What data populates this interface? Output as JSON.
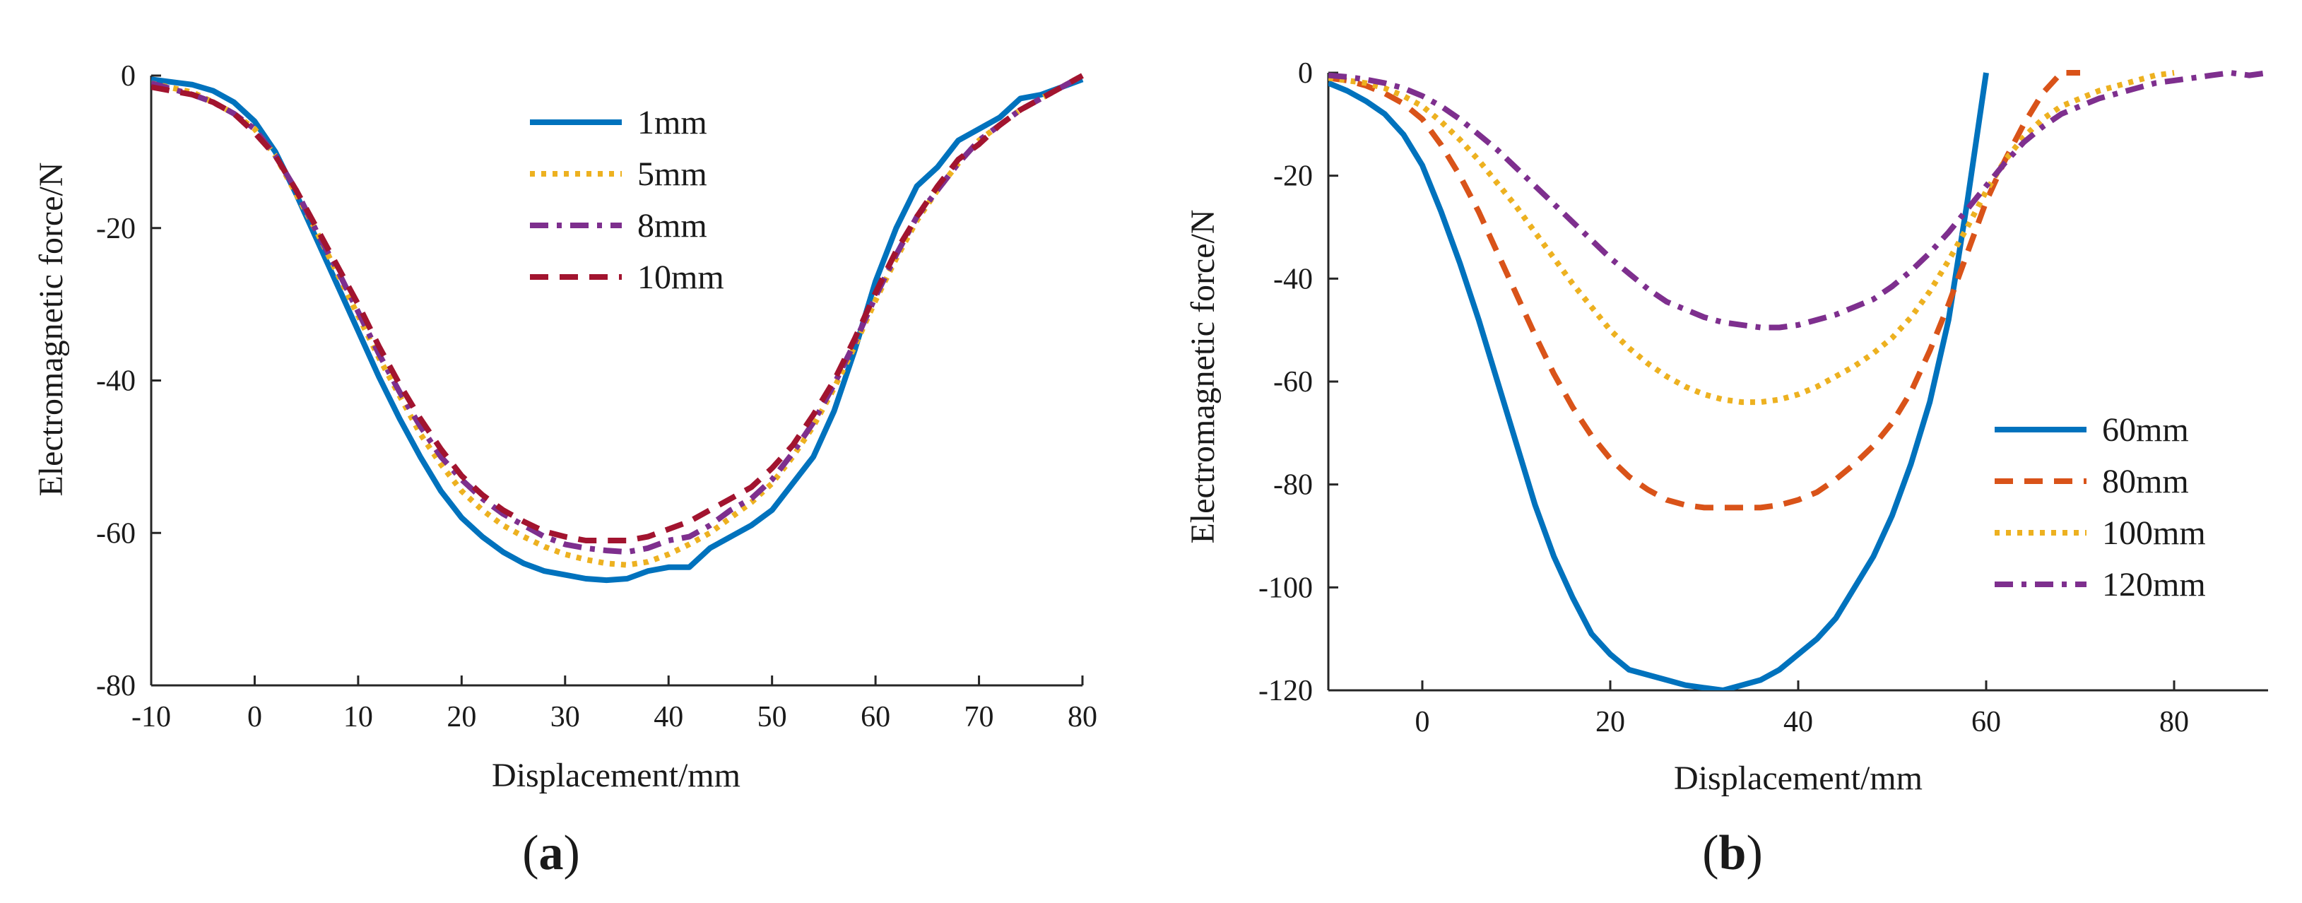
{
  "colors": {
    "blue": "#0072BD",
    "orange": "#D95319",
    "yellow": "#EDB120",
    "purple": "#7E2F8E",
    "darkred": "#A2142F",
    "axis": "#262626"
  },
  "chart_data": [
    {
      "type": "line",
      "panel_label": "(a)",
      "panel_letter": "a",
      "xlabel": "Displacement/mm",
      "ylabel": "Electromagnetic force/N",
      "xlim": [
        -10,
        80
      ],
      "ylim": [
        -80,
        0
      ],
      "xticks": [
        -10,
        0,
        10,
        20,
        30,
        40,
        50,
        60,
        70,
        80
      ],
      "yticks": [
        0,
        -20,
        -40,
        -60,
        -80
      ],
      "legend_position": "top-center",
      "series": [
        {
          "name": "1mm",
          "color": "#0072BD",
          "style": "solid",
          "x": [
            -10,
            -6,
            -4,
            -2,
            0,
            2,
            4,
            6,
            8,
            10,
            12,
            14,
            16,
            18,
            20,
            22,
            24,
            26,
            28,
            30,
            32,
            34,
            36,
            38,
            40,
            42,
            44,
            46,
            48,
            50,
            52,
            54,
            56,
            58,
            60,
            62,
            64,
            66,
            68,
            70,
            72,
            74,
            76,
            78,
            80
          ],
          "y": [
            -0.5,
            -1.2,
            -2.0,
            -3.5,
            -6.0,
            -10.0,
            -15.5,
            -21.5,
            -27.5,
            -33.5,
            -39.5,
            -45.0,
            -50.0,
            -54.5,
            -58.0,
            -60.5,
            -62.5,
            -64.0,
            -65.0,
            -65.5,
            -66.0,
            -66.2,
            -66.0,
            -65.0,
            -64.5,
            -64.5,
            -62.0,
            -60.5,
            -59.0,
            -57.0,
            -53.5,
            -50.0,
            -44.0,
            -36.0,
            -27.0,
            -20.0,
            -14.5,
            -12.0,
            -8.5,
            -7.0,
            -5.5,
            -3.0,
            -2.5,
            -1.5,
            -0.5
          ]
        },
        {
          "name": "5mm",
          "color": "#EDB120",
          "style": "dotted",
          "x": [
            -10,
            -6,
            -4,
            -2,
            0,
            2,
            4,
            6,
            8,
            10,
            12,
            14,
            16,
            18,
            20,
            22,
            24,
            26,
            28,
            30,
            32,
            34,
            36,
            38,
            40,
            42,
            44,
            46,
            48,
            50,
            52,
            54,
            56,
            58,
            60,
            62,
            64,
            66,
            68,
            70,
            72,
            74,
            76,
            78,
            80
          ],
          "y": [
            -1.0,
            -2.2,
            -3.5,
            -5.0,
            -7.0,
            -10.5,
            -15.5,
            -20.5,
            -26.0,
            -31.5,
            -37.0,
            -42.0,
            -47.0,
            -51.0,
            -54.5,
            -57.0,
            -59.0,
            -60.5,
            -61.8,
            -62.8,
            -63.5,
            -64.0,
            -64.2,
            -63.8,
            -62.8,
            -61.5,
            -60.0,
            -58.0,
            -56.0,
            -53.5,
            -50.0,
            -46.0,
            -41.0,
            -35.5,
            -29.5,
            -24.0,
            -19.0,
            -15.0,
            -11.5,
            -8.5,
            -6.5,
            -4.5,
            -3.0,
            -1.5,
            0.0
          ]
        },
        {
          "name": "8mm",
          "color": "#7E2F8E",
          "style": "dashdot",
          "x": [
            -10,
            -6,
            -4,
            -2,
            0,
            2,
            4,
            6,
            8,
            10,
            12,
            14,
            16,
            18,
            20,
            22,
            24,
            26,
            28,
            30,
            32,
            34,
            36,
            38,
            40,
            42,
            44,
            46,
            48,
            50,
            52,
            54,
            56,
            58,
            60,
            62,
            64,
            66,
            68,
            70,
            72,
            74,
            76,
            78,
            80
          ],
          "y": [
            -1.0,
            -2.5,
            -3.5,
            -5.0,
            -7.0,
            -10.5,
            -15.0,
            -20.5,
            -25.5,
            -31.0,
            -36.5,
            -41.5,
            -46.0,
            -50.0,
            -53.0,
            -55.5,
            -57.5,
            -59.0,
            -60.5,
            -61.5,
            -62.0,
            -62.3,
            -62.5,
            -62.0,
            -61.0,
            -60.5,
            -59.0,
            -57.0,
            -55.5,
            -53.0,
            -49.5,
            -45.5,
            -40.5,
            -35.0,
            -29.0,
            -23.5,
            -18.5,
            -15.0,
            -11.5,
            -8.5,
            -6.5,
            -4.5,
            -3.0,
            -1.5,
            0.0
          ]
        },
        {
          "name": "10mm",
          "color": "#A2142F",
          "style": "dashed",
          "x": [
            -10,
            -6,
            -4,
            -2,
            0,
            2,
            4,
            6,
            8,
            10,
            12,
            14,
            16,
            18,
            20,
            22,
            24,
            26,
            28,
            30,
            32,
            34,
            36,
            38,
            40,
            42,
            44,
            46,
            48,
            50,
            52,
            54,
            56,
            58,
            60,
            62,
            64,
            66,
            68,
            70,
            72,
            74,
            76,
            78,
            80
          ],
          "y": [
            -1.5,
            -2.5,
            -3.5,
            -5.0,
            -7.5,
            -10.5,
            -15.0,
            -20.0,
            -25.0,
            -30.0,
            -35.5,
            -40.5,
            -45.0,
            -49.0,
            -52.5,
            -55.0,
            -57.0,
            -58.5,
            -59.8,
            -60.5,
            -61.0,
            -61.0,
            -61.0,
            -60.5,
            -59.5,
            -58.5,
            -57.0,
            -55.5,
            -54.0,
            -51.5,
            -48.5,
            -44.5,
            -40.0,
            -34.5,
            -28.5,
            -23.0,
            -18.5,
            -14.5,
            -11.0,
            -9.0,
            -6.5,
            -4.5,
            -3.0,
            -1.5,
            0.0
          ]
        }
      ]
    },
    {
      "type": "line",
      "panel_label": "(b)",
      "panel_letter": "b",
      "xlabel": "Displacement/mm",
      "ylabel": "Electromagnetic force/N",
      "xlim": [
        -10,
        90
      ],
      "ylim": [
        -120,
        0
      ],
      "xticks": [
        0,
        20,
        40,
        60,
        80
      ],
      "yticks": [
        0,
        -20,
        -40,
        -60,
        -80,
        -100,
        -120
      ],
      "legend_position": "bottom-right",
      "series": [
        {
          "name": "60mm",
          "color": "#0072BD",
          "style": "solid",
          "x": [
            -10,
            -8,
            -6,
            -4,
            -2,
            0,
            2,
            4,
            6,
            8,
            10,
            12,
            14,
            16,
            18,
            20,
            22,
            24,
            26,
            28,
            30,
            32,
            34,
            36,
            38,
            40,
            42,
            44,
            46,
            48,
            50,
            52,
            54,
            56,
            58,
            60
          ],
          "y": [
            -2,
            -3.5,
            -5.5,
            -8,
            -12,
            -18,
            -27,
            -37,
            -48,
            -60,
            -72,
            -84,
            -94,
            -102,
            -109,
            -113,
            -116,
            -117,
            -118,
            -119,
            -119.5,
            -120,
            -119,
            -118,
            -116,
            -113,
            -110,
            -106,
            -100,
            -94,
            -86,
            -76,
            -64,
            -48,
            -25,
            0
          ]
        },
        {
          "name": "80mm",
          "color": "#D95319",
          "style": "dashed",
          "x": [
            -10,
            -8,
            -6,
            -4,
            -2,
            0,
            2,
            4,
            6,
            8,
            10,
            12,
            14,
            16,
            18,
            20,
            22,
            24,
            26,
            28,
            30,
            32,
            34,
            36,
            38,
            40,
            42,
            44,
            46,
            48,
            50,
            52,
            54,
            56,
            58,
            60,
            62,
            64,
            66,
            68,
            70
          ],
          "y": [
            -1,
            -1.5,
            -2.5,
            -4,
            -6,
            -9,
            -14,
            -20,
            -27,
            -35,
            -43,
            -51,
            -58.5,
            -65,
            -70.5,
            -75,
            -78.5,
            -81,
            -83,
            -84,
            -84.5,
            -84.5,
            -84.5,
            -84.5,
            -84,
            -83,
            -81.5,
            -79,
            -76,
            -72.5,
            -68,
            -62,
            -54,
            -45,
            -35,
            -25,
            -17,
            -10,
            -4,
            0,
            0
          ]
        },
        {
          "name": "100mm",
          "color": "#EDB120",
          "style": "dotted",
          "x": [
            -10,
            -8,
            -6,
            -4,
            -2,
            0,
            2,
            4,
            6,
            8,
            10,
            12,
            14,
            16,
            18,
            20,
            22,
            24,
            26,
            28,
            30,
            32,
            34,
            36,
            38,
            40,
            42,
            44,
            46,
            48,
            50,
            52,
            54,
            56,
            58,
            60,
            62,
            64,
            66,
            68,
            70,
            72,
            74,
            76,
            78,
            80
          ],
          "y": [
            -1,
            -1.5,
            -2,
            -3,
            -4.5,
            -6.5,
            -9.5,
            -13,
            -17,
            -21.5,
            -26,
            -31,
            -36,
            -41,
            -45.5,
            -50,
            -53.5,
            -56.5,
            -59,
            -61,
            -62.5,
            -63.5,
            -64,
            -64,
            -63.5,
            -62.5,
            -61,
            -59,
            -57,
            -54.5,
            -51.5,
            -47.5,
            -42.5,
            -36.5,
            -30,
            -23,
            -17,
            -12.5,
            -9,
            -6.5,
            -5,
            -3.5,
            -2.5,
            -1.5,
            -0.5,
            0
          ]
        },
        {
          "name": "120mm",
          "color": "#7E2F8E",
          "style": "dashdot",
          "x": [
            -10,
            -8,
            -6,
            -4,
            -2,
            0,
            2,
            4,
            6,
            8,
            10,
            12,
            14,
            16,
            18,
            20,
            22,
            24,
            26,
            28,
            30,
            32,
            34,
            36,
            38,
            40,
            42,
            44,
            46,
            48,
            50,
            52,
            54,
            56,
            58,
            60,
            62,
            64,
            66,
            68,
            70,
            72,
            74,
            76,
            78,
            80,
            82,
            84,
            86,
            88,
            90
          ],
          "y": [
            -0.5,
            -0.8,
            -1.3,
            -2,
            -3,
            -4.5,
            -6.5,
            -9,
            -12,
            -15,
            -18.5,
            -22,
            -25.5,
            -29,
            -32.5,
            -36,
            -39,
            -42,
            -44.5,
            -46,
            -47.5,
            -48.5,
            -49,
            -49.5,
            -49.5,
            -49,
            -48,
            -47,
            -45.5,
            -44,
            -41.5,
            -38.5,
            -35,
            -31,
            -26.5,
            -22,
            -17.5,
            -13.5,
            -10.5,
            -8,
            -6.5,
            -5,
            -4,
            -3,
            -2,
            -1.5,
            -1,
            -0.5,
            0,
            -0.5,
            0
          ]
        }
      ]
    }
  ]
}
